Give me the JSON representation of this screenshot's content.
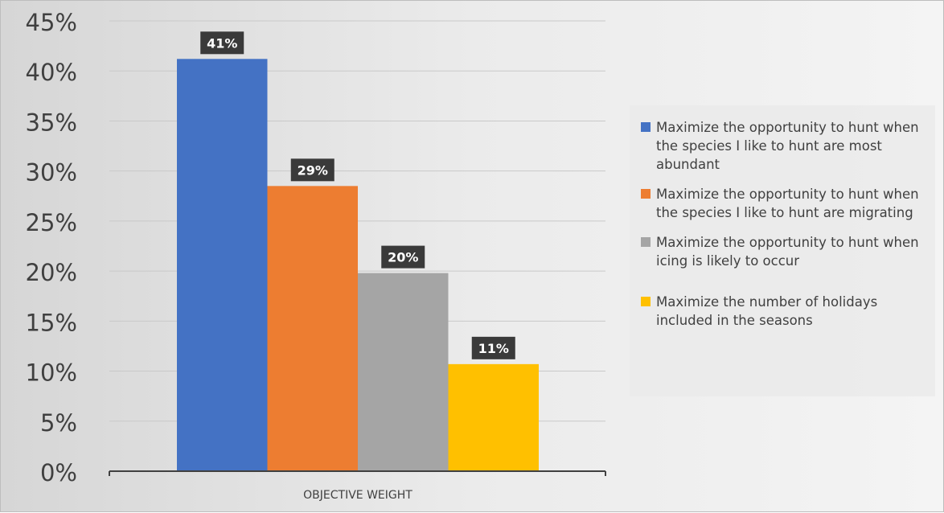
{
  "chart_data": {
    "type": "bar",
    "xlabel": "OBJECTIVE WEIGHT",
    "ylim": [
      0,
      45
    ],
    "y_ticks": [
      "0%",
      "5%",
      "10%",
      "15%",
      "20%",
      "25%",
      "30%",
      "35%",
      "40%",
      "45%"
    ],
    "grid": true,
    "legend_position": "right",
    "series": [
      {
        "name": "Maximize the opportunity to hunt when the species I like to hunt are most abundant",
        "value": 41.2,
        "data_label": "41%",
        "color": "#4472c4"
      },
      {
        "name": "Maximize the opportunity to hunt when the species I like to hunt are migrating",
        "value": 28.5,
        "data_label": "29%",
        "color": "#ed7d31"
      },
      {
        "name": "Maximize the opportunity to hunt when icing is likely to occur",
        "value": 19.8,
        "data_label": "20%",
        "color": "#a5a5a5"
      },
      {
        "name": "Maximize the number of holidays included in the seasons",
        "value": 10.7,
        "data_label": "11%",
        "color": "#ffc000"
      }
    ]
  }
}
